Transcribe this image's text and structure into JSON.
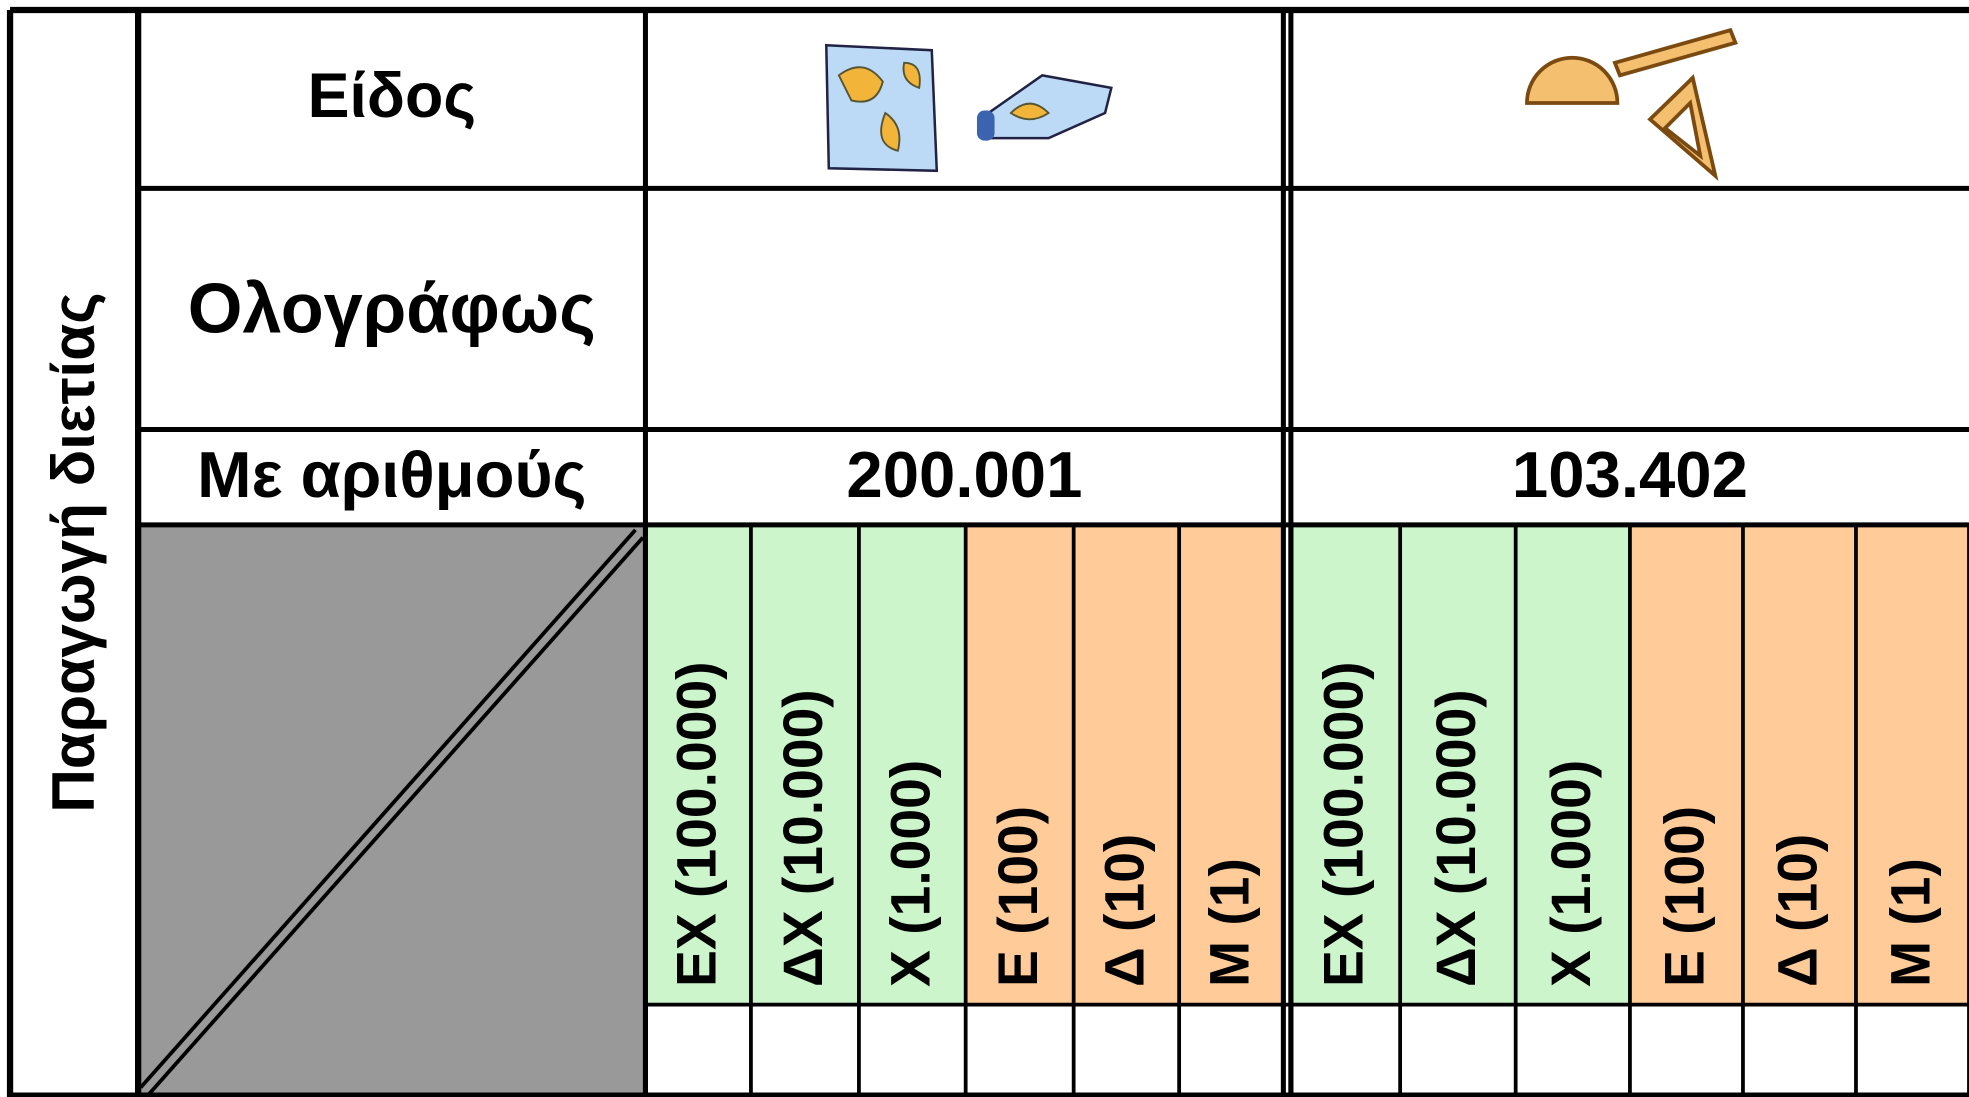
{
  "side_label": "Παραγωγή διετίας",
  "row_labels": [
    "Είδος",
    "Ολογράφως",
    "Με αριθμούς"
  ],
  "groups": [
    {
      "number": "200.001",
      "columns": [
        "ΕΧ (100.000)",
        "ΔΧ (10.000)",
        "Χ (1.000)",
        "Ε (100)",
        "Δ (10)",
        "Μ (1)"
      ]
    },
    {
      "number": "103.402",
      "columns": [
        "ΕΧ (100.000)",
        "ΔΧ (10.000)",
        "Χ (1.000)",
        "Ε (100)",
        "Δ (10)",
        "Μ (1)"
      ]
    }
  ]
}
